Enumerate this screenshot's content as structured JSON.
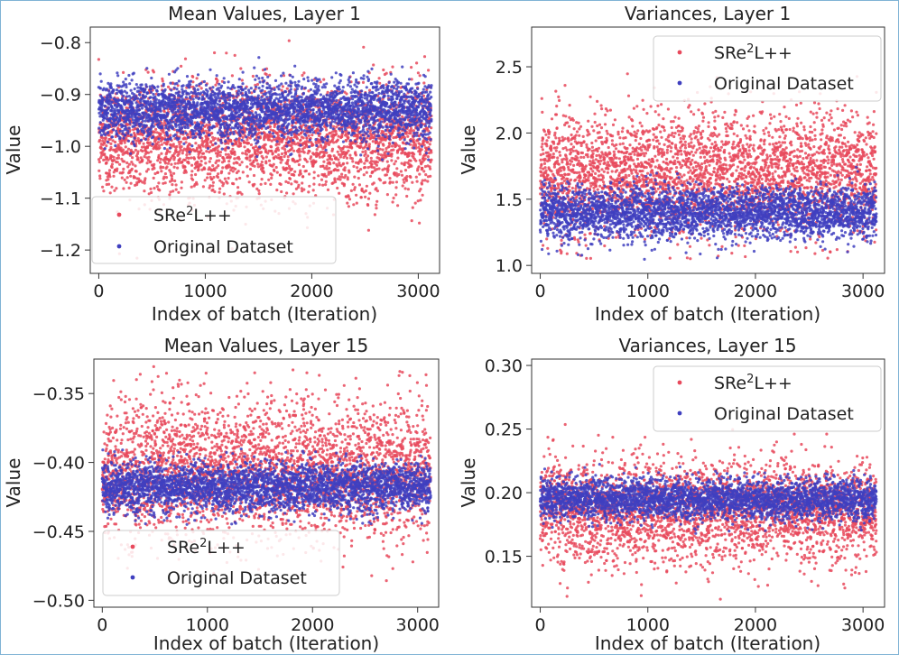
{
  "figure": {
    "description_colors": {
      "series_a": "#e8495c",
      "series_b": "#3f3fbf",
      "frame_border": "#7fb3d5"
    }
  },
  "chart_data": [
    {
      "type": "scatter",
      "title": "Mean Values, Layer 1",
      "xlabel": "Index of batch (Iteration)",
      "ylabel": "Value",
      "xlim": [
        -80,
        3200
      ],
      "ylim": [
        -1.245,
        -0.77
      ],
      "xticks": [
        0,
        1000,
        2000,
        3000
      ],
      "xtick_labels": [
        "0",
        "1000",
        "2000",
        "3000"
      ],
      "yticks": [
        -0.8,
        -0.9,
        -1.0,
        -1.1,
        -1.2
      ],
      "ytick_labels": [
        "−0.8",
        "−0.9",
        "−1.0",
        "−1.1",
        "−1.2"
      ],
      "legend": {
        "position": "lower-left",
        "entries": [
          "SRe²L++",
          "Original Dataset"
        ]
      },
      "series": [
        {
          "name": "SRe²L++",
          "color": "#e8495c",
          "n_points": 3125,
          "x_range": [
            0,
            3124
          ],
          "mean": -0.985,
          "spread": 0.055,
          "min": -1.24,
          "max": -0.78
        },
        {
          "name": "Original Dataset",
          "color": "#3f3fbf",
          "n_points": 3125,
          "x_range": [
            0,
            3124
          ],
          "mean": -0.93,
          "spread": 0.028,
          "min": -1.03,
          "max": -0.81
        }
      ]
    },
    {
      "type": "scatter",
      "title": "Variances, Layer 1",
      "xlabel": "Index of batch (Iteration)",
      "ylabel": "Value",
      "xlim": [
        -80,
        3200
      ],
      "ylim": [
        0.94,
        2.8
      ],
      "xticks": [
        0,
        1000,
        2000,
        3000
      ],
      "xtick_labels": [
        "0",
        "1000",
        "2000",
        "3000"
      ],
      "yticks": [
        1.0,
        1.5,
        2.0,
        2.5
      ],
      "ytick_labels": [
        "1.0",
        "1.5",
        "2.0",
        "2.5"
      ],
      "legend": {
        "position": "upper-right",
        "entries": [
          "SRe²L++",
          "Original Dataset"
        ]
      },
      "series": [
        {
          "name": "SRe²L++",
          "color": "#e8495c",
          "n_points": 3125,
          "x_range": [
            0,
            3124
          ],
          "mean": 1.7,
          "spread": 0.22,
          "min": 1.05,
          "max": 2.78
        },
        {
          "name": "Original Dataset",
          "color": "#3f3fbf",
          "n_points": 3125,
          "x_range": [
            0,
            3124
          ],
          "mean": 1.4,
          "spread": 0.1,
          "min": 1.03,
          "max": 1.75
        }
      ]
    },
    {
      "type": "scatter",
      "title": "Mean Values, Layer 15",
      "xlabel": "Index of batch (Iteration)",
      "ylabel": "Value",
      "xlim": [
        -80,
        3200
      ],
      "ylim": [
        -0.505,
        -0.325
      ],
      "xticks": [
        0,
        1000,
        2000,
        3000
      ],
      "xtick_labels": [
        "0",
        "1000",
        "2000",
        "3000"
      ],
      "yticks": [
        -0.35,
        -0.4,
        -0.45,
        -0.5
      ],
      "ytick_labels": [
        "−0.35",
        "−0.40",
        "−0.45",
        "−0.50"
      ],
      "legend": {
        "position": "lower-left",
        "entries": [
          "SRe²L++",
          "Original Dataset"
        ]
      },
      "series": [
        {
          "name": "SRe²L++",
          "color": "#e8495c",
          "n_points": 3125,
          "x_range": [
            0,
            3124
          ],
          "mean": -0.405,
          "spread": 0.025,
          "min": -0.5,
          "max": -0.33
        },
        {
          "name": "Original Dataset",
          "color": "#3f3fbf",
          "n_points": 3125,
          "x_range": [
            0,
            3124
          ],
          "mean": -0.418,
          "spread": 0.009,
          "min": -0.45,
          "max": -0.39
        }
      ]
    },
    {
      "type": "scatter",
      "title": "Variances, Layer 15",
      "xlabel": "Index of batch (Iteration)",
      "ylabel": "Value",
      "xlim": [
        -80,
        3200
      ],
      "ylim": [
        0.11,
        0.305
      ],
      "xticks": [
        0,
        1000,
        2000,
        3000
      ],
      "xtick_labels": [
        "0",
        "1000",
        "2000",
        "3000"
      ],
      "yticks": [
        0.15,
        0.2,
        0.25,
        0.3
      ],
      "ytick_labels": [
        "0.15",
        "0.20",
        "0.25",
        "0.30"
      ],
      "legend": {
        "position": "upper-right",
        "entries": [
          "SRe²L++",
          "Original Dataset"
        ]
      },
      "series": [
        {
          "name": "SRe²L++",
          "color": "#e8495c",
          "n_points": 3125,
          "x_range": [
            0,
            3124
          ],
          "mean": 0.185,
          "spread": 0.02,
          "min": 0.115,
          "max": 0.29
        },
        {
          "name": "Original Dataset",
          "color": "#3f3fbf",
          "n_points": 3125,
          "x_range": [
            0,
            3124
          ],
          "mean": 0.195,
          "spread": 0.008,
          "min": 0.165,
          "max": 0.225
        }
      ]
    }
  ]
}
